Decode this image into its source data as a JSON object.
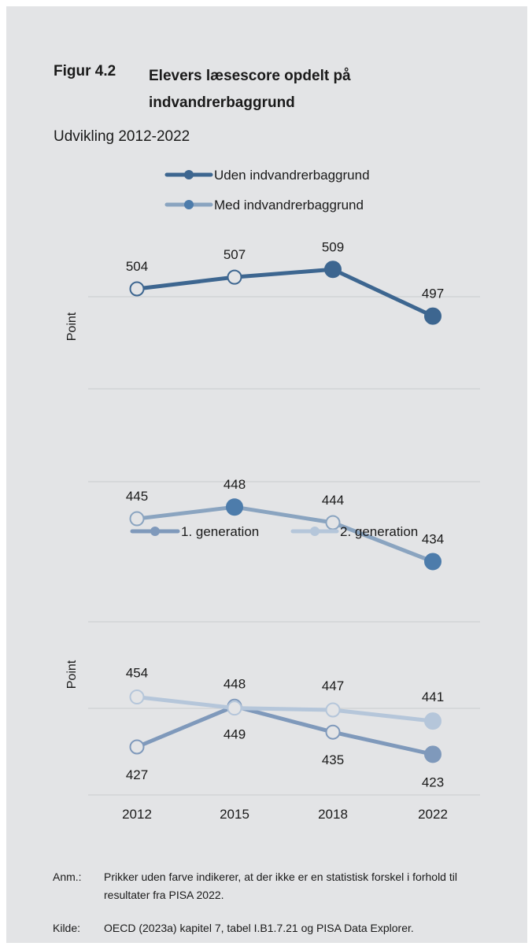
{
  "figure": {
    "number": "Figur 4.2",
    "title": "Elevers læsescore opdelt på indvandrerbaggrund",
    "subtitle": "Udvikling 2012-2022"
  },
  "colors": {
    "panel_bg": "#e3e4e6",
    "dark_blue": "#3d6690",
    "mid_blue": "#8aa4c0",
    "blue_steel": "#7f99bb",
    "light_blue": "#b5c6da",
    "filled_dot_mid": "#4d7cab",
    "grid": "#cfd0d3"
  },
  "chart_data": [
    {
      "type": "line",
      "x": [
        "2012",
        "2015",
        "2018",
        "2022"
      ],
      "ylabel": "Point",
      "grid": true,
      "legend_position": "top",
      "series": [
        {
          "name": "Uden indvandrerbaggrund",
          "values": [
            504,
            507,
            509,
            497
          ],
          "filled": [
            false,
            false,
            true,
            true
          ],
          "color": "#3d6690"
        },
        {
          "name": "Med indvandrerbaggrund",
          "values": [
            445,
            448,
            444,
            434
          ],
          "filled": [
            false,
            true,
            false,
            true
          ],
          "color": "#8aa4c0"
        }
      ]
    },
    {
      "type": "line",
      "x": [
        "2012",
        "2015",
        "2018",
        "2022"
      ],
      "ylabel": "Point",
      "grid": true,
      "legend_position": "top",
      "series": [
        {
          "name": "1. generation",
          "values": [
            427,
            449,
            435,
            423
          ],
          "filled": [
            false,
            false,
            false,
            true
          ],
          "color": "#7f99bb"
        },
        {
          "name": "2. generation",
          "values": [
            454,
            448,
            447,
            441
          ],
          "filled": [
            false,
            false,
            false,
            true
          ],
          "color": "#b5c6da"
        }
      ]
    }
  ],
  "notes": {
    "anm_key": "Anm.:",
    "anm_text": "Prikker uden farve indikerer, at der ikke er en statistisk forskel i forhold til resultater fra PISA 2022.",
    "kilde_key": "Kilde:",
    "kilde_text": "OECD (2023a) kapitel 7, tabel I.B1.7.21 og PISA Data Explorer."
  }
}
